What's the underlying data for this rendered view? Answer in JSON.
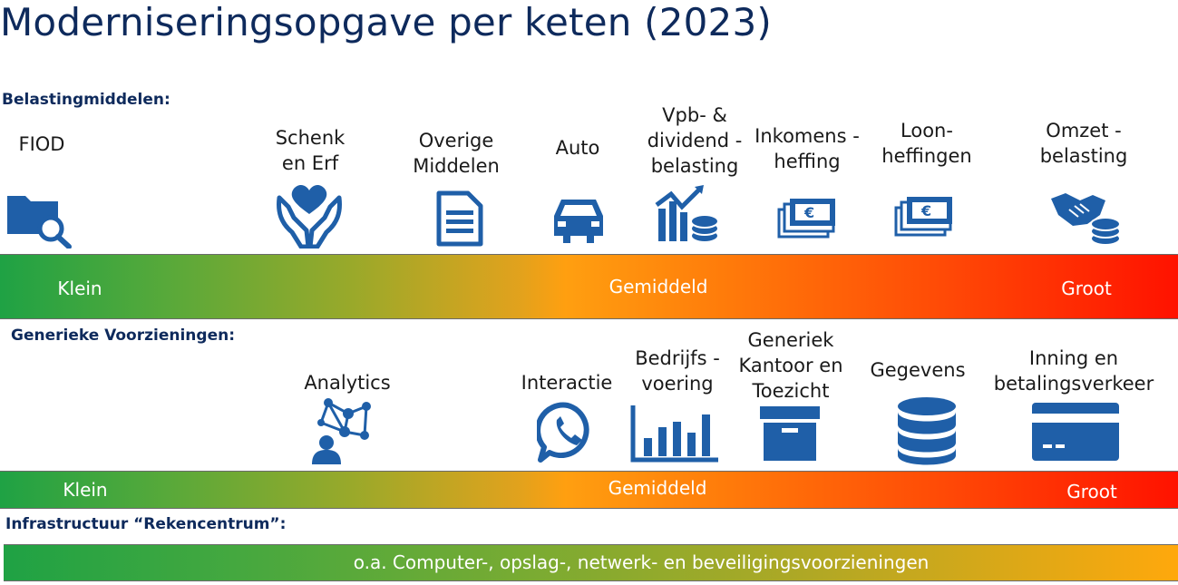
{
  "title": "Moderniseringsopgave per keten (2023)",
  "sections": {
    "belasting": {
      "heading": "Belastingmiddelen:",
      "items": [
        {
          "label": "FIOD",
          "icon": "folder-search-icon"
        },
        {
          "label": "Schenk\nen Erf",
          "icon": "hands-heart-icon"
        },
        {
          "label": "Overige\nMiddelen",
          "icon": "document-icon"
        },
        {
          "label": "Auto",
          "icon": "car-icon"
        },
        {
          "label": "Vpb- &\ndividend -\nbelasting",
          "icon": "chart-coins-icon"
        },
        {
          "label": "Inkomens -\nheffing",
          "icon": "euro-banknotes-icon"
        },
        {
          "label": "Loon-\nheffingen",
          "icon": "euro-banknotes-icon"
        },
        {
          "label": "Omzet -\nbelasting",
          "icon": "handshake-coins-icon"
        }
      ],
      "scale": {
        "low": "Klein",
        "mid": "Gemiddeld",
        "high": "Groot"
      }
    },
    "generiek": {
      "heading": "Generieke Voorzieningen:",
      "items": [
        {
          "label": "Analytics",
          "icon": "network-person-icon"
        },
        {
          "label": "Interactie",
          "icon": "whatsapp-icon"
        },
        {
          "label": "Bedrijfs -\nvoering",
          "icon": "bar-chart-icon"
        },
        {
          "label": "Generiek\nKantoor en\nToezicht",
          "icon": "archive-box-icon"
        },
        {
          "label": "Gegevens",
          "icon": "database-icon"
        },
        {
          "label": "Inning en\nbetalingsverkeer",
          "icon": "credit-card-icon"
        }
      ],
      "scale": {
        "low": "Klein",
        "mid": "Gemiddeld",
        "high": "Groot"
      }
    },
    "infra": {
      "heading": "Infrastructuur “Rekencentrum”:",
      "bar_text": "o.a. Computer-, opslag-, netwerk- en beveiligingsvoorzieningen"
    }
  },
  "colors": {
    "icon": "#1f5fa8",
    "heading": "#0e2a5c",
    "scale_low": "#1fa244",
    "scale_mid": "#ff9f10",
    "scale_high": "#ff1200"
  }
}
